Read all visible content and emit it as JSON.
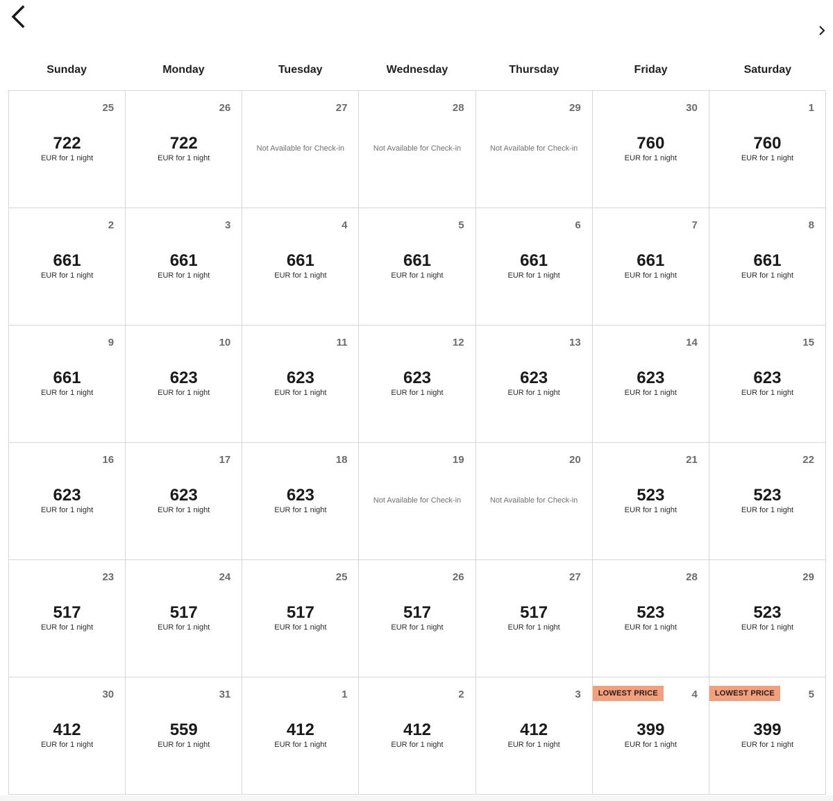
{
  "nav": {
    "prev_icon": "chevron-left-icon",
    "next_icon": "chevron-right-icon"
  },
  "weekdays": [
    "Sunday",
    "Monday",
    "Tuesday",
    "Wednesday",
    "Thursday",
    "Friday",
    "Saturday"
  ],
  "labels": {
    "price_suffix": "EUR for 1 night",
    "not_available": "Not Available for Check-in",
    "lowest_price": "LOWEST PRICE"
  },
  "colors": {
    "badge_bg": "#f0a07e",
    "grid_border": "#d6d6d6"
  },
  "weeks": [
    [
      {
        "day": "25",
        "price": "722"
      },
      {
        "day": "26",
        "price": "722"
      },
      {
        "day": "27",
        "available": false
      },
      {
        "day": "28",
        "available": false
      },
      {
        "day": "29",
        "available": false
      },
      {
        "day": "30",
        "price": "760"
      },
      {
        "day": "1",
        "price": "760"
      }
    ],
    [
      {
        "day": "2",
        "price": "661"
      },
      {
        "day": "3",
        "price": "661"
      },
      {
        "day": "4",
        "price": "661"
      },
      {
        "day": "5",
        "price": "661"
      },
      {
        "day": "6",
        "price": "661"
      },
      {
        "day": "7",
        "price": "661"
      },
      {
        "day": "8",
        "price": "661"
      }
    ],
    [
      {
        "day": "9",
        "price": "661"
      },
      {
        "day": "10",
        "price": "623"
      },
      {
        "day": "11",
        "price": "623"
      },
      {
        "day": "12",
        "price": "623"
      },
      {
        "day": "13",
        "price": "623"
      },
      {
        "day": "14",
        "price": "623"
      },
      {
        "day": "15",
        "price": "623"
      }
    ],
    [
      {
        "day": "16",
        "price": "623"
      },
      {
        "day": "17",
        "price": "623"
      },
      {
        "day": "18",
        "price": "623"
      },
      {
        "day": "19",
        "available": false
      },
      {
        "day": "20",
        "available": false
      },
      {
        "day": "21",
        "price": "523"
      },
      {
        "day": "22",
        "price": "523"
      }
    ],
    [
      {
        "day": "23",
        "price": "517"
      },
      {
        "day": "24",
        "price": "517"
      },
      {
        "day": "25",
        "price": "517"
      },
      {
        "day": "26",
        "price": "517"
      },
      {
        "day": "27",
        "price": "517"
      },
      {
        "day": "28",
        "price": "523"
      },
      {
        "day": "29",
        "price": "523"
      }
    ],
    [
      {
        "day": "30",
        "price": "412"
      },
      {
        "day": "31",
        "price": "559"
      },
      {
        "day": "1",
        "price": "412"
      },
      {
        "day": "2",
        "price": "412"
      },
      {
        "day": "3",
        "price": "412"
      },
      {
        "day": "4",
        "price": "399",
        "lowest": true
      },
      {
        "day": "5",
        "price": "399",
        "lowest": true
      }
    ]
  ]
}
